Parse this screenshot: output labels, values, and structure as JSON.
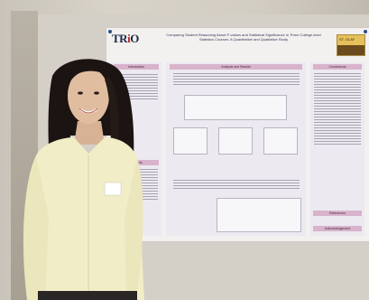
{
  "poster": {
    "logo": "TR",
    "logo_o": "i",
    "logo_end": "O",
    "title": "Comparing Student Reasoning About P-values and Statistical Significance in Three College-level Statistics Courses: A Quantitative and Qualitative Study",
    "sections": {
      "introduction": "Introduction",
      "analysis": "Analysis and Results",
      "conclusions": "Conclusions",
      "methods": "Methods",
      "references": "References",
      "acknowledgements": "Acknowledgement"
    },
    "badge": "ST. OLAF"
  },
  "colors": {
    "poster_bg": "#f3f1ef",
    "section_header": "#d8b3cc",
    "logo": "#1a2a4a",
    "blouse": "#f1edc6",
    "hair": "#1c1412"
  },
  "icons": [
    "pushpin-icon"
  ]
}
